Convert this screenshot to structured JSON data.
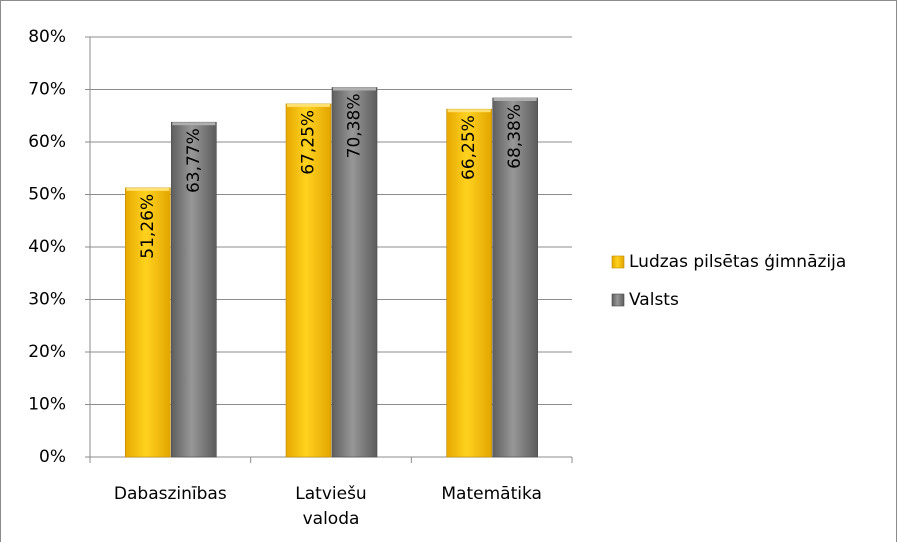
{
  "chart_data": {
    "type": "bar",
    "categories": [
      "Dabaszinības",
      "Latviešu valoda",
      "Matemātika"
    ],
    "series": [
      {
        "name": "Ludzas pilsētas ģimnāzija",
        "color": "#ffc000",
        "values": [
          51.26,
          67.25,
          66.25
        ],
        "value_labels": [
          "51,26%",
          "67,25%",
          "66,25%"
        ]
      },
      {
        "name": "Valsts",
        "color": "#7f7f7f",
        "values": [
          63.77,
          70.38,
          68.38
        ],
        "value_labels": [
          "63,77%",
          "70,38%",
          "68,38%"
        ]
      }
    ],
    "ylim": [
      0,
      80
    ],
    "yticks": [
      {
        "value": 0,
        "label": "0%"
      },
      {
        "value": 10,
        "label": "10%"
      },
      {
        "value": 20,
        "label": "20%"
      },
      {
        "value": 30,
        "label": "30%"
      },
      {
        "value": 40,
        "label": "40%"
      },
      {
        "value": 50,
        "label": "50%"
      },
      {
        "value": 60,
        "label": "60%"
      },
      {
        "value": 70,
        "label": "70%"
      },
      {
        "value": 80,
        "label": "80%"
      }
    ],
    "grid": true,
    "legend": "right"
  }
}
